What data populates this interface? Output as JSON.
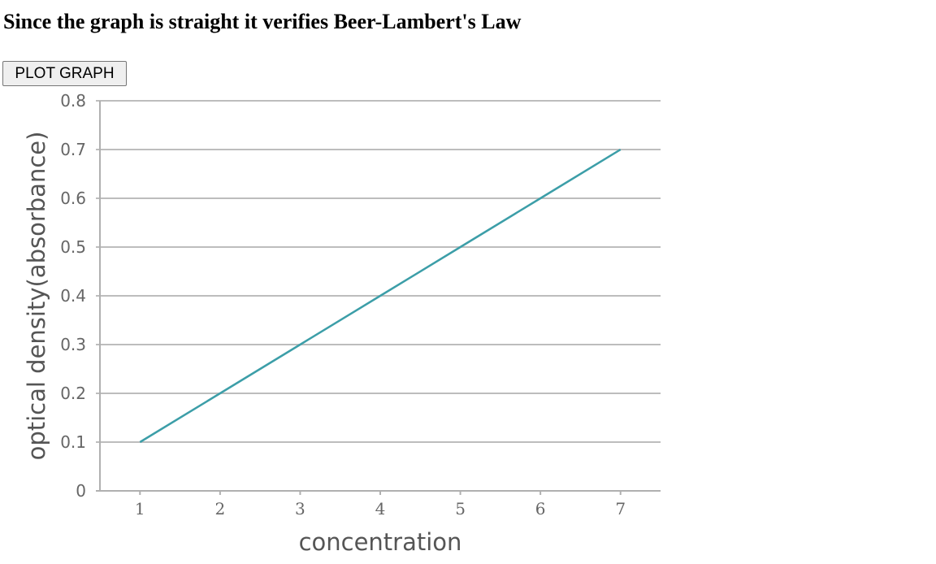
{
  "page": {
    "heading": "Since the graph is straight it verifies Beer-Lambert's Law",
    "plot_button_label": "PLOT GRAPH"
  },
  "chart_data": {
    "type": "line",
    "title": "",
    "xlabel": "concentration",
    "ylabel": "optical density(absorbance)",
    "x": [
      1,
      2,
      3,
      4,
      5,
      6,
      7
    ],
    "series": [
      {
        "values": [
          0.1,
          0.2,
          0.3,
          0.4,
          0.5,
          0.6,
          0.7
        ]
      }
    ],
    "xlim": [
      0.5,
      7.5
    ],
    "ylim": [
      0,
      0.8
    ],
    "yticks": [
      "0",
      "0.1",
      "0.2",
      "0.3",
      "0.4",
      "0.5",
      "0.6",
      "0.7",
      "0.8"
    ],
    "xticks": [
      "1",
      "2",
      "3",
      "4",
      "5",
      "6",
      "7"
    ],
    "grid": true,
    "colors": {
      "line": "#3c9ea8",
      "grid": "#bdbdbd",
      "axis": "#b0b0b0"
    }
  }
}
